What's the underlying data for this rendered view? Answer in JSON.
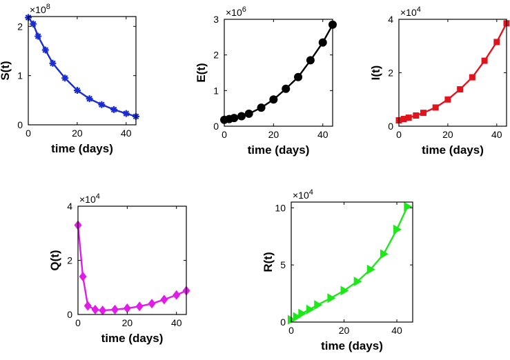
{
  "chart_data": [
    {
      "type": "line",
      "id": "S",
      "ylabel": "S(t)",
      "xlabel": "time (days)",
      "multiplier": "×10",
      "exponent": "8",
      "color": "#1a2ccf",
      "marker": "asterisk",
      "xlim": [
        0,
        44
      ],
      "ylim": [
        0,
        2.2
      ],
      "xticks": [
        "0",
        "20",
        "40"
      ],
      "yticks": [
        "0",
        "1",
        "2"
      ],
      "x": [
        0,
        2,
        4,
        7,
        10,
        15,
        20,
        25,
        30,
        35,
        40,
        44
      ],
      "y": [
        2.18,
        2.05,
        1.8,
        1.52,
        1.25,
        0.95,
        0.7,
        0.53,
        0.41,
        0.31,
        0.23,
        0.17
      ]
    },
    {
      "type": "line",
      "id": "E",
      "ylabel": "E(t)",
      "xlabel": "time (days)",
      "multiplier": "×10",
      "exponent": "6",
      "color": "#000000",
      "marker": "circle",
      "xlim": [
        0,
        44
      ],
      "ylim": [
        0,
        3
      ],
      "xticks": [
        "0",
        "20",
        "40"
      ],
      "yticks": [
        "0",
        "1",
        "2",
        "3"
      ],
      "x": [
        0,
        2,
        4,
        7,
        10,
        15,
        20,
        25,
        30,
        35,
        40,
        44
      ],
      "y": [
        0.18,
        0.2,
        0.23,
        0.28,
        0.35,
        0.52,
        0.75,
        1.05,
        1.38,
        1.85,
        2.35,
        2.85
      ]
    },
    {
      "type": "line",
      "id": "I",
      "ylabel": "I(t)",
      "xlabel": "time (days)",
      "multiplier": "×10",
      "exponent": "4",
      "color": "#e0141c",
      "marker": "square",
      "xlim": [
        0,
        44
      ],
      "ylim": [
        0,
        4
      ],
      "xticks": [
        "0",
        "20",
        "40"
      ],
      "yticks": [
        "0",
        "2",
        "4"
      ],
      "x": [
        0,
        2,
        4,
        7,
        10,
        15,
        20,
        25,
        30,
        35,
        40,
        44
      ],
      "y": [
        0.22,
        0.27,
        0.32,
        0.4,
        0.5,
        0.7,
        1.0,
        1.38,
        1.83,
        2.45,
        3.15,
        3.85
      ]
    },
    {
      "type": "line",
      "id": "Q",
      "ylabel": "Q(t)",
      "xlabel": "time (days)",
      "multiplier": "×10",
      "exponent": "4",
      "color": "#e01ce8",
      "marker": "diamond",
      "xlim": [
        0,
        44
      ],
      "ylim": [
        0,
        4
      ],
      "xticks": [
        "0",
        "20",
        "40"
      ],
      "yticks": [
        "0",
        "2",
        "4"
      ],
      "x": [
        0,
        2,
        4,
        7,
        10,
        15,
        20,
        25,
        30,
        35,
        40,
        44
      ],
      "y": [
        3.3,
        1.4,
        0.32,
        0.18,
        0.15,
        0.18,
        0.23,
        0.3,
        0.4,
        0.55,
        0.72,
        0.88
      ]
    },
    {
      "type": "line",
      "id": "R",
      "ylabel": "R(t)",
      "xlabel": "time (days)",
      "multiplier": "×10",
      "exponent": "4",
      "color": "#1ee81a",
      "marker": "triangle-right",
      "xlim": [
        0,
        46
      ],
      "ylim": [
        0,
        10.5
      ],
      "xticks": [
        "0",
        "20",
        "40"
      ],
      "yticks": [
        "0",
        "5",
        "10"
      ],
      "x": [
        0,
        2,
        4,
        7,
        10,
        15,
        20,
        25,
        30,
        35,
        40,
        44
      ],
      "y": [
        0.2,
        0.45,
        0.75,
        1.1,
        1.5,
        2.1,
        2.75,
        3.55,
        4.6,
        5.95,
        8.1,
        10.1
      ]
    }
  ]
}
